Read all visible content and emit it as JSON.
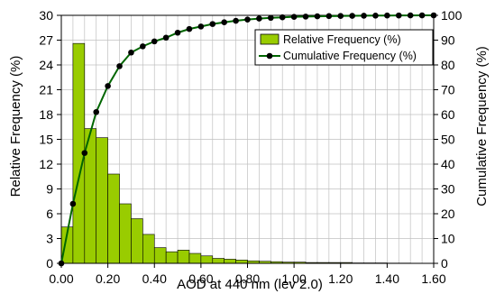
{
  "chart_data": {
    "type": "bar",
    "xlabel": "AOD at 440 nm (lev 2.0)",
    "ylabel_left": "Relative Frequency (%)",
    "ylabel_right": "Cumulative Frequency (%)",
    "xlim": [
      0,
      1.6
    ],
    "ylim_left": [
      0,
      30
    ],
    "ylim_right": [
      0,
      100
    ],
    "x_ticks": [
      "0.00",
      "0.20",
      "0.40",
      "0.60",
      "0.80",
      "1.00",
      "1.20",
      "1.40",
      "1.60"
    ],
    "y_left_ticks": [
      "0",
      "3",
      "6",
      "9",
      "12",
      "15",
      "18",
      "21",
      "24",
      "27",
      "30"
    ],
    "y_right_ticks": [
      "0",
      "10",
      "20",
      "30",
      "40",
      "50",
      "60",
      "70",
      "80",
      "90",
      "100"
    ],
    "grid": true,
    "legend_position": "top-right",
    "bin_width": 0.05,
    "bin_starts": [
      0.0,
      0.05,
      0.1,
      0.15,
      0.2,
      0.25,
      0.3,
      0.35,
      0.4,
      0.45,
      0.5,
      0.55,
      0.6,
      0.65,
      0.7,
      0.75,
      0.8,
      0.85,
      0.9,
      0.95,
      1.0,
      1.05,
      1.1,
      1.15,
      1.2,
      1.25,
      1.3,
      1.35,
      1.4,
      1.45,
      1.5,
      1.55
    ],
    "series": [
      {
        "name": "Relative Frequency (%)",
        "kind": "bar",
        "axis": "left",
        "color": "#99cc00",
        "values": [
          4.4,
          26.6,
          16.3,
          15.2,
          10.8,
          7.2,
          5.4,
          3.5,
          1.9,
          1.4,
          1.6,
          1.2,
          0.9,
          0.6,
          0.5,
          0.4,
          0.3,
          0.25,
          0.2,
          0.15,
          0.15,
          0.1,
          0.1,
          0.1,
          0.1,
          0.05,
          0.05,
          0.05,
          0.03,
          0.03,
          0.02,
          0.02
        ]
      },
      {
        "name": "Cumulative Frequency (%)",
        "kind": "line",
        "axis": "right",
        "color": "#006600",
        "marker_color": "#000000",
        "x": [
          0.0,
          0.05,
          0.1,
          0.15,
          0.2,
          0.25,
          0.3,
          0.35,
          0.4,
          0.45,
          0.5,
          0.55,
          0.6,
          0.65,
          0.7,
          0.75,
          0.8,
          0.85,
          0.9,
          0.95,
          1.0,
          1.05,
          1.1,
          1.15,
          1.2,
          1.25,
          1.3,
          1.35,
          1.4,
          1.45,
          1.5,
          1.55,
          1.6
        ],
        "values": [
          0.0,
          24.0,
          44.5,
          61.0,
          71.5,
          79.5,
          85.0,
          87.5,
          89.5,
          91.0,
          93.0,
          94.5,
          95.5,
          96.5,
          97.2,
          97.8,
          98.3,
          98.7,
          99.0,
          99.2,
          99.4,
          99.5,
          99.6,
          99.7,
          99.75,
          99.8,
          99.85,
          99.9,
          99.92,
          99.95,
          99.97,
          99.99,
          100.0
        ]
      }
    ]
  }
}
